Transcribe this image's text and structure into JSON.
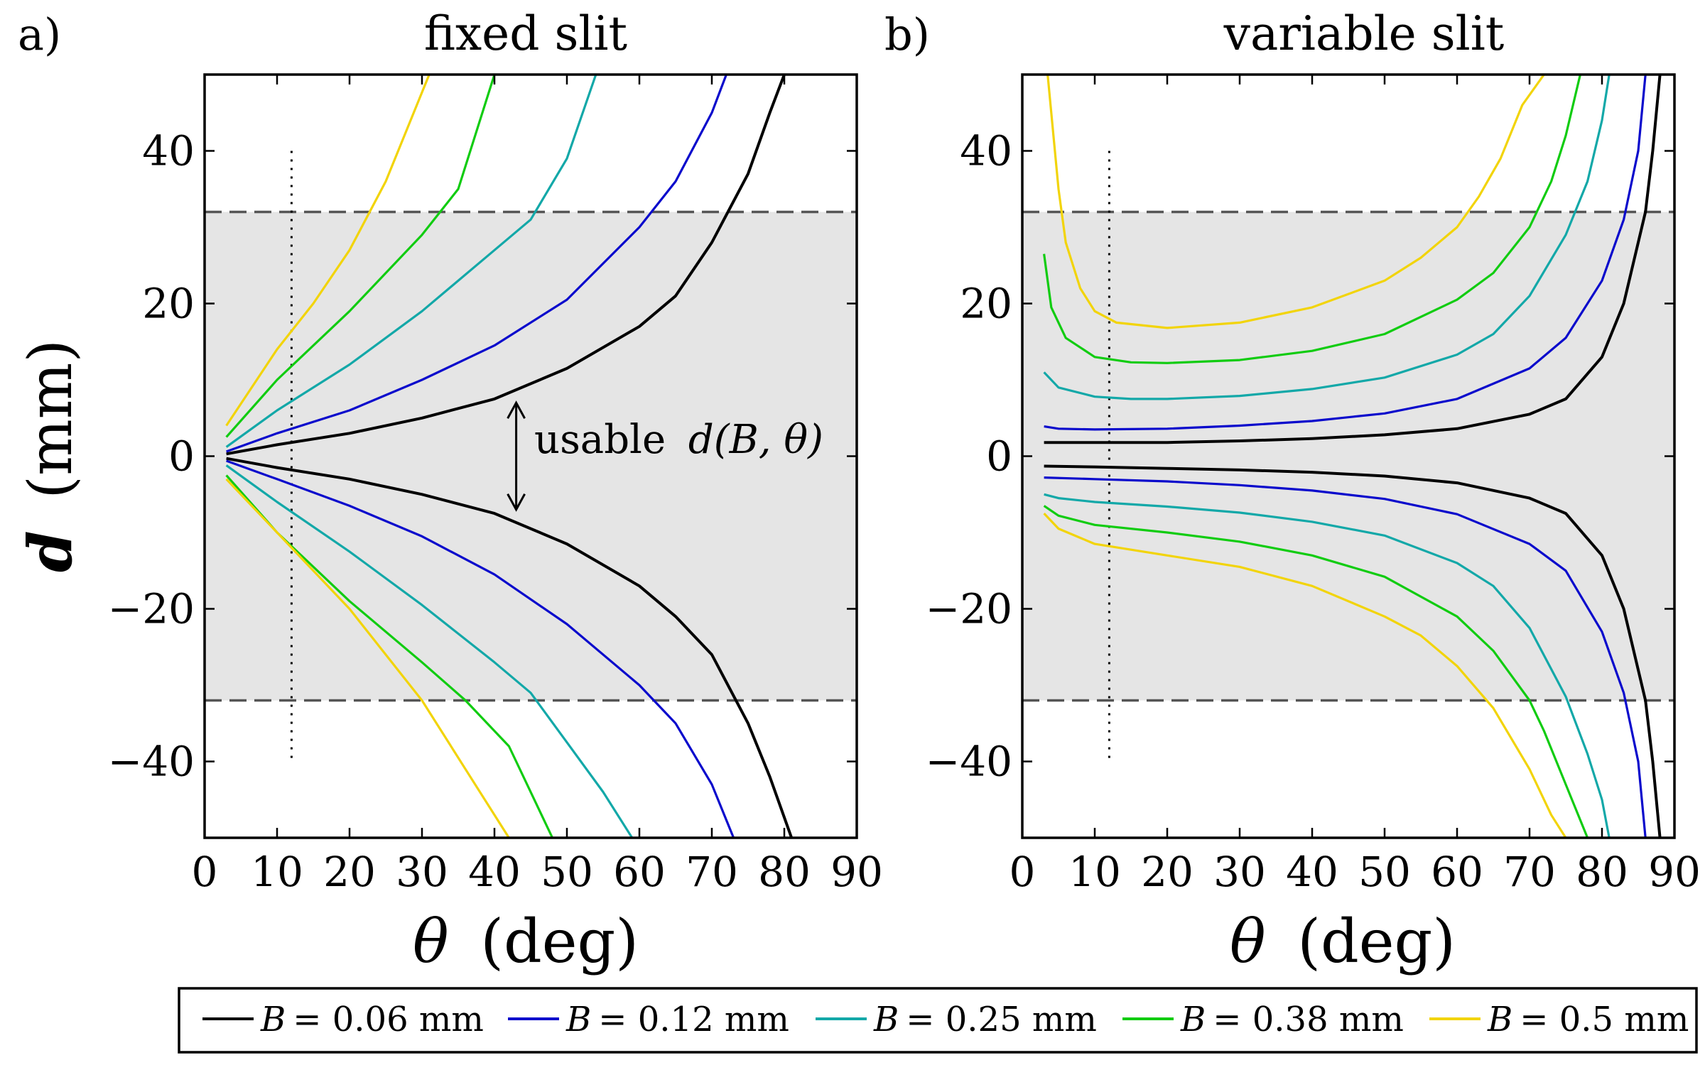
{
  "figure": {
    "ylabel_var": "d",
    "ylabel_unit": "(mm)",
    "xlabel_var": "θ",
    "xlabel_unit": "(deg)"
  },
  "legend": {
    "entries": [
      {
        "var": "B",
        "eq": "= 0.06 mm",
        "color": "#000000"
      },
      {
        "var": "B",
        "eq": "= 0.12 mm",
        "color": "#0a0acc"
      },
      {
        "var": "B",
        "eq": "= 0.25 mm",
        "color": "#13a8a8"
      },
      {
        "var": "B",
        "eq": "= 0.38 mm",
        "color": "#11cc11"
      },
      {
        "var": "B",
        "eq": "= 0.5 mm",
        "color": "#f2d40a"
      }
    ]
  },
  "chart_data": [
    {
      "type": "line",
      "panel_label": "a)",
      "title": "fixed slit",
      "xlabel": "θ (deg)",
      "ylabel": "d (mm)",
      "xlim": [
        0,
        90
      ],
      "ylim": [
        -50,
        50
      ],
      "xticks": [
        "0",
        "10",
        "20",
        "30",
        "40",
        "50",
        "60",
        "70",
        "80",
        "90"
      ],
      "yticks": [
        "−40",
        "−20",
        "0",
        "20",
        "40"
      ],
      "shaded_band": [
        -32,
        32
      ],
      "dashed_lines_y": [
        32,
        -32
      ],
      "dotted_line": {
        "x": 12,
        "y": [
          -40,
          40
        ]
      },
      "annotation": {
        "text_plain": "usable",
        "text_math": "d(B, θ)",
        "arrow_x": 43,
        "arrow_y": [
          -7,
          7
        ]
      },
      "series": [
        {
          "name": "B = 0.06 mm",
          "color": "#000000",
          "upper": [
            [
              3,
              0.3
            ],
            [
              10,
              1.5
            ],
            [
              20,
              3.0
            ],
            [
              30,
              5.0
            ],
            [
              40,
              7.5
            ],
            [
              50,
              11.5
            ],
            [
              60,
              17
            ],
            [
              65,
              21
            ],
            [
              70,
              28
            ],
            [
              75,
              37
            ],
            [
              78,
              45
            ],
            [
              80,
              50
            ]
          ],
          "lower": [
            [
              3,
              -0.3
            ],
            [
              10,
              -1.5
            ],
            [
              20,
              -3.0
            ],
            [
              30,
              -5.0
            ],
            [
              40,
              -7.5
            ],
            [
              50,
              -11.5
            ],
            [
              60,
              -17
            ],
            [
              65,
              -21
            ],
            [
              70,
              -26
            ],
            [
              75,
              -35
            ],
            [
              78,
              -42
            ],
            [
              81,
              -50
            ]
          ]
        },
        {
          "name": "B = 0.12 mm",
          "color": "#0a0acc",
          "upper": [
            [
              3,
              0.6
            ],
            [
              10,
              3
            ],
            [
              20,
              6
            ],
            [
              30,
              10
            ],
            [
              40,
              14.5
            ],
            [
              50,
              20.5
            ],
            [
              60,
              30
            ],
            [
              65,
              36
            ],
            [
              70,
              45
            ],
            [
              72,
              50
            ]
          ],
          "lower": [
            [
              3,
              -0.6
            ],
            [
              10,
              -3
            ],
            [
              20,
              -6.5
            ],
            [
              30,
              -10.5
            ],
            [
              40,
              -15.5
            ],
            [
              50,
              -22
            ],
            [
              60,
              -30
            ],
            [
              65,
              -35
            ],
            [
              70,
              -43
            ],
            [
              73,
              -50
            ]
          ]
        },
        {
          "name": "B = 0.25 mm",
          "color": "#13a8a8",
          "upper": [
            [
              3,
              1.2
            ],
            [
              10,
              6
            ],
            [
              20,
              12
            ],
            [
              30,
              19
            ],
            [
              40,
              27
            ],
            [
              45,
              31
            ],
            [
              50,
              39
            ],
            [
              54,
              50
            ]
          ],
          "lower": [
            [
              3,
              -1.2
            ],
            [
              10,
              -6
            ],
            [
              20,
              -12.5
            ],
            [
              30,
              -19.5
            ],
            [
              40,
              -27
            ],
            [
              45,
              -31
            ],
            [
              50,
              -37.5
            ],
            [
              55,
              -44
            ],
            [
              59,
              -50
            ]
          ]
        },
        {
          "name": "B = 0.38 mm",
          "color": "#11cc11",
          "upper": [
            [
              3,
              2.5
            ],
            [
              10,
              10
            ],
            [
              20,
              19
            ],
            [
              30,
              29
            ],
            [
              35,
              35
            ],
            [
              40,
              50
            ]
          ],
          "lower": [
            [
              3,
              -2.5
            ],
            [
              10,
              -10
            ],
            [
              20,
              -19
            ],
            [
              30,
              -27
            ],
            [
              36,
              -32
            ],
            [
              42,
              -38
            ],
            [
              48,
              -50
            ]
          ]
        },
        {
          "name": "B = 0.5 mm",
          "color": "#f2d40a",
          "upper": [
            [
              3,
              4
            ],
            [
              10,
              14
            ],
            [
              15,
              20
            ],
            [
              20,
              27
            ],
            [
              25,
              36
            ],
            [
              31,
              50
            ]
          ],
          "lower": [
            [
              3,
              -3
            ],
            [
              10,
              -10
            ],
            [
              20,
              -20
            ],
            [
              30,
              -32
            ],
            [
              36,
              -41
            ],
            [
              42,
              -50
            ]
          ]
        }
      ]
    },
    {
      "type": "line",
      "panel_label": "b)",
      "title": "variable slit",
      "xlabel": "θ (deg)",
      "ylabel": "d (mm)",
      "xlim": [
        0,
        90
      ],
      "ylim": [
        -50,
        50
      ],
      "xticks": [
        "0",
        "10",
        "20",
        "30",
        "40",
        "50",
        "60",
        "70",
        "80",
        "90"
      ],
      "yticks": [
        "−40",
        "−20",
        "0",
        "20",
        "40"
      ],
      "shaded_band": [
        -32,
        32
      ],
      "dashed_lines_y": [
        32,
        -32
      ],
      "dotted_line": {
        "x": 12,
        "y": [
          -40,
          40
        ]
      },
      "series": [
        {
          "name": "B = 0.06 mm",
          "color": "#000000",
          "upper": [
            [
              3,
              1.8
            ],
            [
              10,
              1.8
            ],
            [
              20,
              1.8
            ],
            [
              30,
              2.0
            ],
            [
              40,
              2.3
            ],
            [
              50,
              2.8
            ],
            [
              60,
              3.6
            ],
            [
              70,
              5.5
            ],
            [
              75,
              7.5
            ],
            [
              80,
              13
            ],
            [
              83,
              20
            ],
            [
              85,
              28
            ],
            [
              86,
              32
            ],
            [
              87,
              40
            ],
            [
              88,
              50
            ]
          ],
          "lower": [
            [
              3,
              -1.3
            ],
            [
              10,
              -1.4
            ],
            [
              20,
              -1.6
            ],
            [
              30,
              -1.8
            ],
            [
              40,
              -2.1
            ],
            [
              50,
              -2.6
            ],
            [
              60,
              -3.5
            ],
            [
              70,
              -5.5
            ],
            [
              75,
              -7.5
            ],
            [
              80,
              -13
            ],
            [
              83,
              -20
            ],
            [
              85,
              -28
            ],
            [
              86,
              -32
            ],
            [
              87,
              -40
            ],
            [
              88,
              -50
            ]
          ]
        },
        {
          "name": "B = 0.12 mm",
          "color": "#0a0acc",
          "upper": [
            [
              3,
              3.9
            ],
            [
              5,
              3.6
            ],
            [
              10,
              3.5
            ],
            [
              20,
              3.6
            ],
            [
              30,
              4.0
            ],
            [
              40,
              4.6
            ],
            [
              50,
              5.6
            ],
            [
              60,
              7.5
            ],
            [
              70,
              11.5
            ],
            [
              75,
              15.5
            ],
            [
              80,
              23
            ],
            [
              83,
              31
            ],
            [
              85,
              40
            ],
            [
              86,
              50
            ]
          ],
          "lower": [
            [
              3,
              -2.8
            ],
            [
              10,
              -3.0
            ],
            [
              20,
              -3.3
            ],
            [
              30,
              -3.8
            ],
            [
              40,
              -4.5
            ],
            [
              50,
              -5.6
            ],
            [
              60,
              -7.6
            ],
            [
              70,
              -11.5
            ],
            [
              75,
              -15
            ],
            [
              80,
              -23
            ],
            [
              83,
              -31
            ],
            [
              85,
              -40
            ],
            [
              86,
              -50
            ]
          ]
        },
        {
          "name": "B = 0.25 mm",
          "color": "#13a8a8",
          "upper": [
            [
              3,
              11
            ],
            [
              5,
              9
            ],
            [
              10,
              7.8
            ],
            [
              15,
              7.5
            ],
            [
              20,
              7.5
            ],
            [
              30,
              7.9
            ],
            [
              40,
              8.8
            ],
            [
              50,
              10.3
            ],
            [
              60,
              13.3
            ],
            [
              65,
              16
            ],
            [
              70,
              21
            ],
            [
              75,
              29
            ],
            [
              78,
              36
            ],
            [
              80,
              44
            ],
            [
              81,
              50
            ]
          ],
          "lower": [
            [
              3,
              -5
            ],
            [
              5,
              -5.5
            ],
            [
              10,
              -6
            ],
            [
              20,
              -6.6
            ],
            [
              30,
              -7.4
            ],
            [
              40,
              -8.6
            ],
            [
              50,
              -10.4
            ],
            [
              60,
              -14
            ],
            [
              65,
              -17
            ],
            [
              70,
              -22.5
            ],
            [
              75,
              -31.5
            ],
            [
              78,
              -39
            ],
            [
              80,
              -45
            ],
            [
              81,
              -50
            ]
          ]
        },
        {
          "name": "B = 0.38 mm",
          "color": "#11cc11",
          "upper": [
            [
              3,
              26.5
            ],
            [
              4,
              19.5
            ],
            [
              6,
              15.5
            ],
            [
              10,
              13
            ],
            [
              15,
              12.3
            ],
            [
              20,
              12.2
            ],
            [
              30,
              12.6
            ],
            [
              40,
              13.8
            ],
            [
              50,
              16
            ],
            [
              60,
              20.5
            ],
            [
              65,
              24
            ],
            [
              70,
              30
            ],
            [
              73,
              36
            ],
            [
              75,
              42
            ],
            [
              77,
              50
            ]
          ],
          "lower": [
            [
              3,
              -6.5
            ],
            [
              5,
              -7.8
            ],
            [
              10,
              -9
            ],
            [
              20,
              -10
            ],
            [
              30,
              -11.2
            ],
            [
              40,
              -13
            ],
            [
              50,
              -15.8
            ],
            [
              60,
              -21
            ],
            [
              65,
              -25.5
            ],
            [
              70,
              -32
            ],
            [
              72,
              -36
            ],
            [
              75,
              -43
            ],
            [
              78,
              -50
            ]
          ]
        },
        {
          "name": "B = 0.5 mm",
          "color": "#f2d40a",
          "upper": [
            [
              3.5,
              50
            ],
            [
              4,
              45
            ],
            [
              5,
              35
            ],
            [
              6,
              28
            ],
            [
              8,
              22
            ],
            [
              10,
              19
            ],
            [
              13,
              17.5
            ],
            [
              20,
              16.8
            ],
            [
              30,
              17.5
            ],
            [
              40,
              19.5
            ],
            [
              50,
              23
            ],
            [
              55,
              26
            ],
            [
              60,
              30
            ],
            [
              63,
              34
            ],
            [
              66,
              39
            ],
            [
              69,
              46
            ],
            [
              72,
              50
            ]
          ],
          "lower": [
            [
              3,
              -7.5
            ],
            [
              5,
              -9.5
            ],
            [
              10,
              -11.5
            ],
            [
              20,
              -13
            ],
            [
              30,
              -14.5
            ],
            [
              40,
              -17
            ],
            [
              50,
              -21
            ],
            [
              55,
              -23.5
            ],
            [
              60,
              -27.5
            ],
            [
              65,
              -33
            ],
            [
              70,
              -41
            ],
            [
              73,
              -47
            ],
            [
              75,
              -50
            ]
          ]
        }
      ]
    }
  ]
}
